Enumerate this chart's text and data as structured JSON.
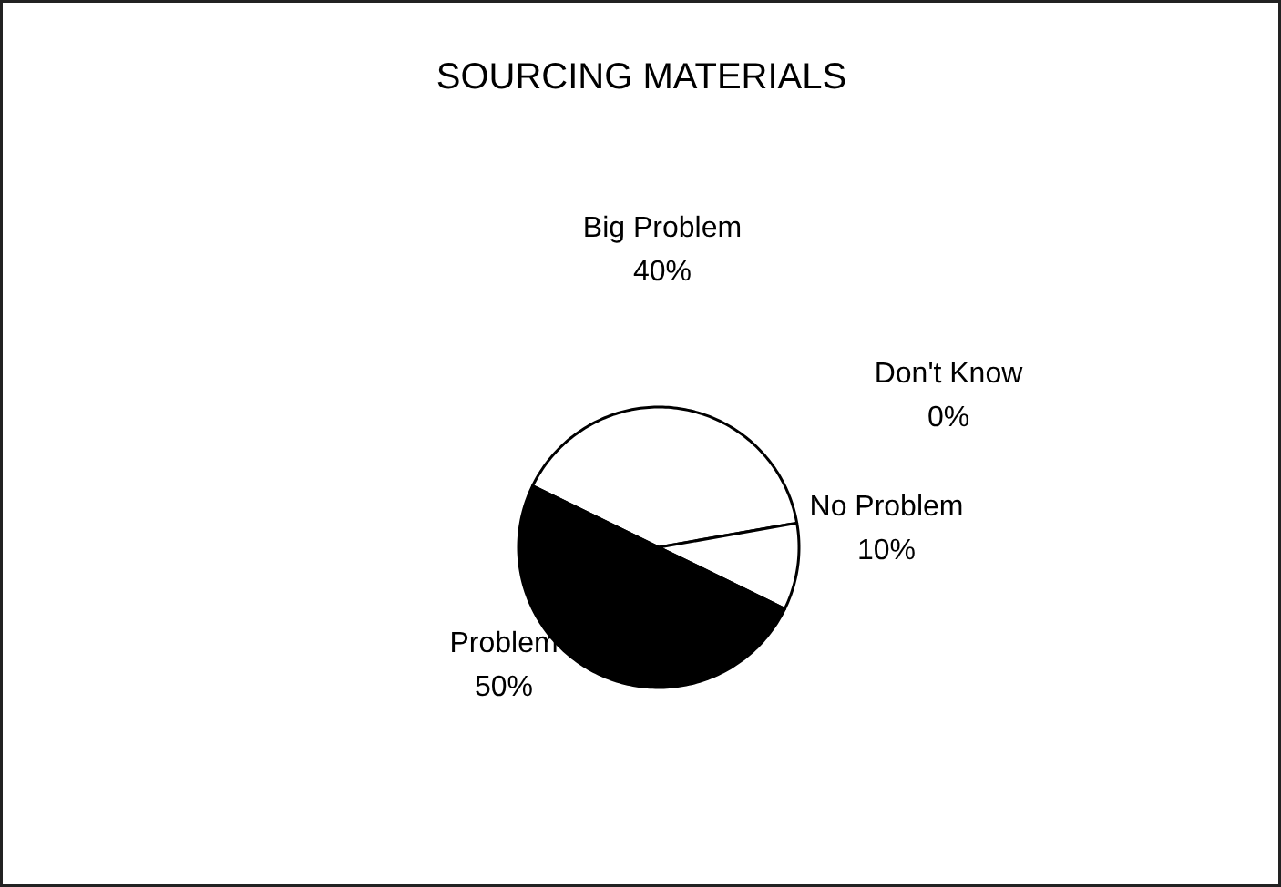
{
  "chart_data": {
    "type": "pie",
    "title": "SOURCING MATERIALS",
    "categories": [
      "Big Problem",
      "Don't Know",
      "No Problem",
      "Problem"
    ],
    "values": [
      40,
      0,
      10,
      50
    ],
    "colors": [
      "#ffffff",
      "#ffffff",
      "#ffffff",
      "#000000"
    ],
    "data_labels": true,
    "value_labels": [
      "40%",
      "0%",
      "10%",
      "50%"
    ]
  }
}
